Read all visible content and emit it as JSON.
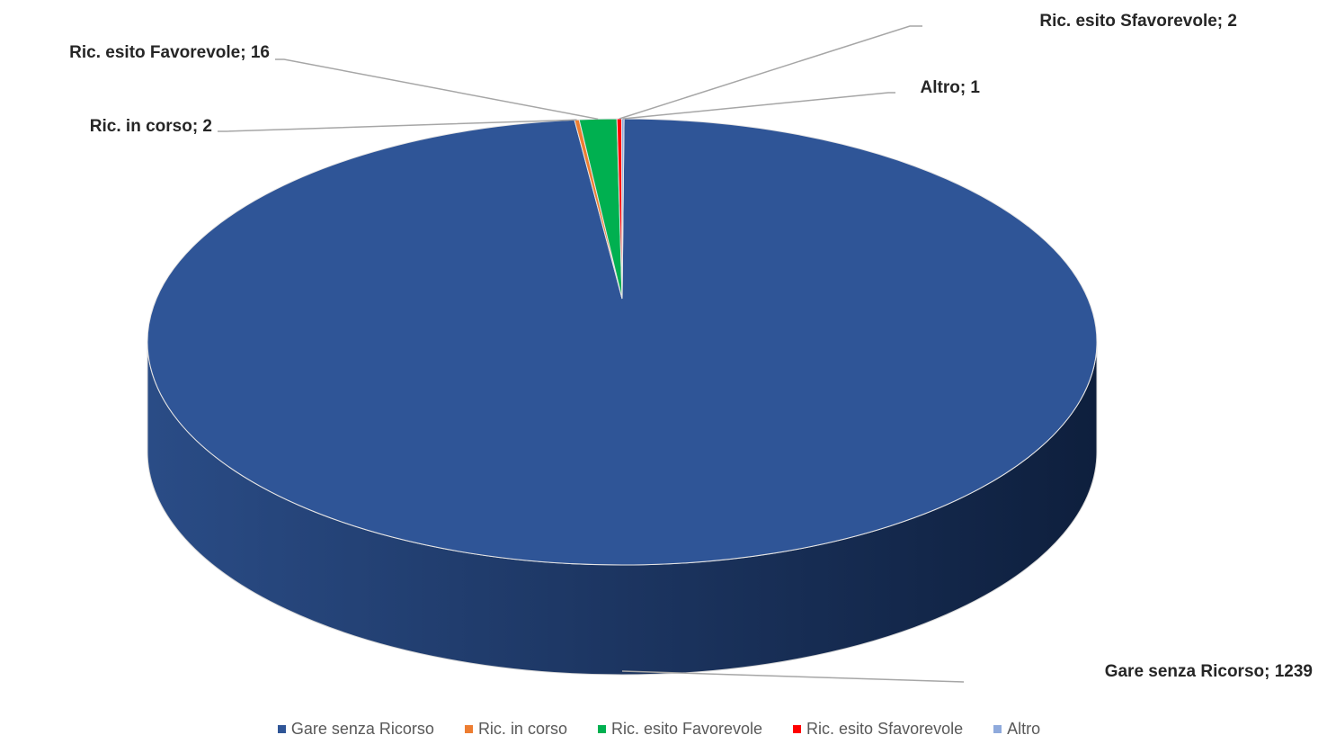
{
  "chart_data": {
    "type": "pie",
    "variant": "3d",
    "title": "",
    "legend_position": "bottom",
    "slices": [
      {
        "name": "Gare senza Ricorso",
        "value": 1239,
        "color": "#2F5597",
        "label": "Gare senza Ricorso; 1239"
      },
      {
        "name": "Ric. in corso",
        "value": 2,
        "color": "#ED7D31",
        "label": "Ric. in corso; 2"
      },
      {
        "name": "Ric. esito Favorevole",
        "value": 16,
        "color": "#00B050",
        "label": "Ric. esito Favorevole; 16"
      },
      {
        "name": "Ric. esito Sfavorevole",
        "value": 2,
        "color": "#FF0000",
        "label": "Ric. esito Sfavorevole; 2"
      },
      {
        "name": "Altro",
        "value": 1,
        "color": "#8FAADC",
        "label": "Altro; 1"
      }
    ]
  }
}
